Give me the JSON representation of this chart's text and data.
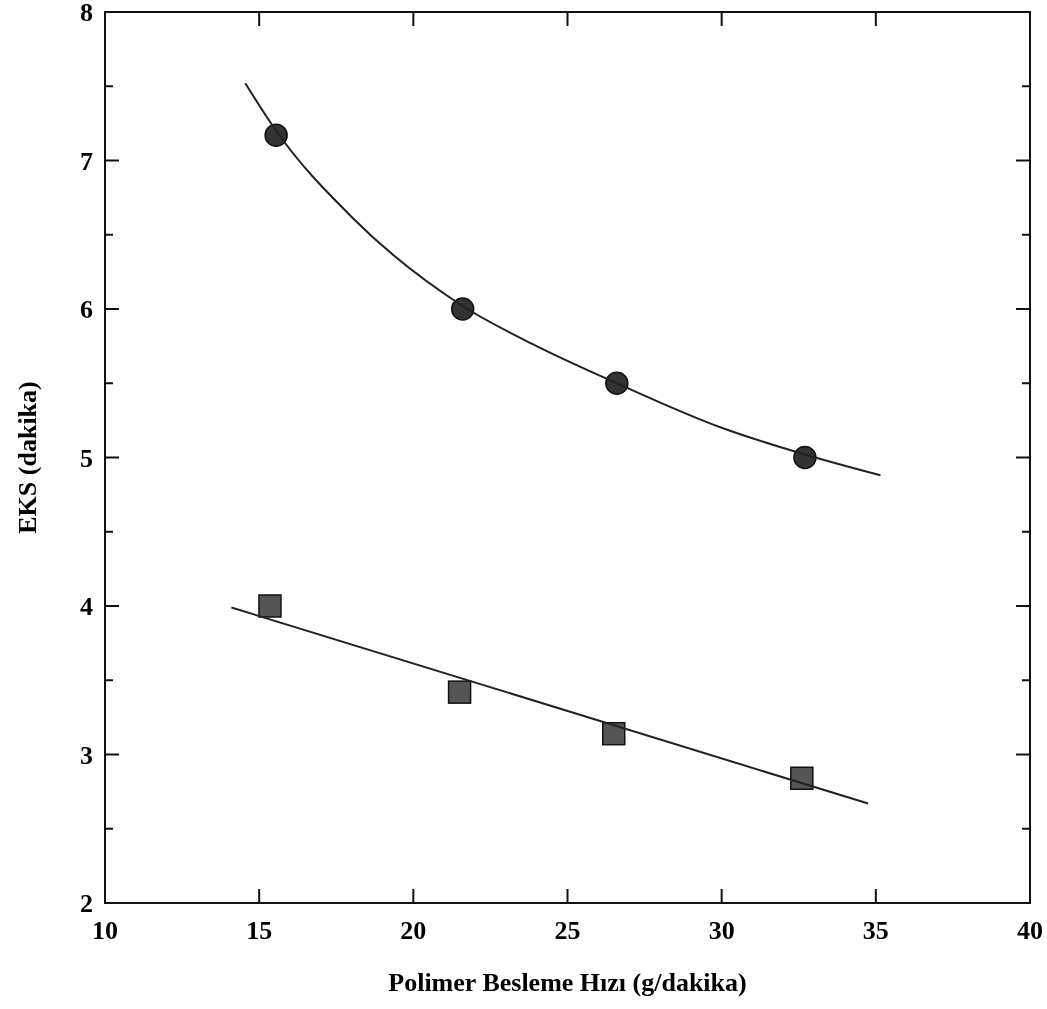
{
  "chart_data": {
    "type": "scatter",
    "xlabel": "Polimer Besleme Hızı (g/dakika)",
    "ylabel": "EKS  (dakika)",
    "xlim": [
      10,
      40
    ],
    "xticks": [
      10,
      15,
      20,
      25,
      30,
      35,
      40
    ],
    "ylim": [
      2,
      8
    ],
    "yticks": [
      2,
      {
        "value": 2.5,
        "label": null
      },
      3,
      {
        "value": 3.5,
        "label": null
      },
      4,
      {
        "value": 4.5,
        "label": null
      },
      5,
      {
        "value": 5.5,
        "label": null
      },
      6,
      {
        "value": 6.5,
        "label": null
      },
      7,
      {
        "value": 7.5,
        "label": null
      },
      8
    ],
    "grid": false,
    "series": [
      {
        "marker": "circle",
        "color": "#333333",
        "x": [
          15.55,
          21.6,
          26.6,
          32.7
        ],
        "values": [
          7.17,
          6.0,
          5.5,
          5.0
        ]
      },
      {
        "marker": "square",
        "color": "#555555",
        "x": [
          15.35,
          21.5,
          26.5,
          32.6
        ],
        "values": [
          4.0,
          3.42,
          3.14,
          2.84
        ]
      },
      {
        "type": "line",
        "color": "#222222",
        "x": [
          14.55,
          15.55,
          18,
          21.6,
          24,
          26.6,
          30,
          32.7,
          35.15
        ],
        "values": [
          7.52,
          7.2,
          6.62,
          6.02,
          5.75,
          5.5,
          5.2,
          5.02,
          4.88
        ]
      },
      {
        "type": "line",
        "color": "#222222",
        "x": [
          14.1,
          34.75
        ],
        "values": [
          3.99,
          2.67
        ]
      }
    ]
  }
}
